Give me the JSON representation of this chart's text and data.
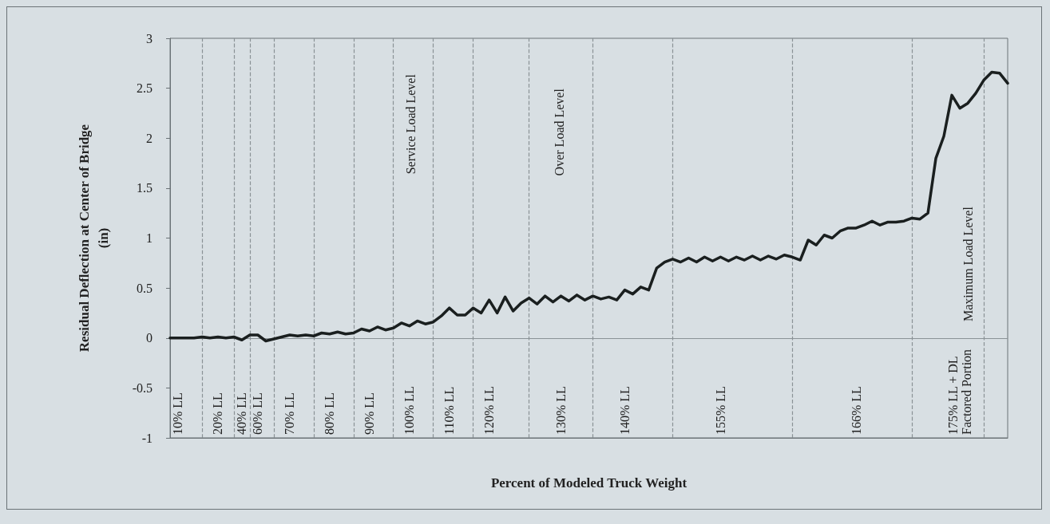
{
  "chart_data": {
    "type": "line",
    "xlabel": "Percent of Modeled Truck Weight",
    "ylabel": "Residual Deflection at Center of Bridge\n(in)",
    "categories": [
      null,
      "10% LL",
      null,
      null,
      null,
      null,
      "20% LL",
      null,
      null,
      "40% LL",
      null,
      "60% LL",
      null,
      null,
      null,
      "70% LL",
      null,
      null,
      null,
      null,
      "80% LL",
      null,
      null,
      null,
      null,
      "90% LL",
      null,
      null,
      null,
      null,
      "100% LL",
      null,
      null,
      null,
      null,
      "110% LL",
      null,
      null,
      null,
      null,
      "120% LL",
      null,
      null,
      null,
      null,
      null,
      null,
      null,
      null,
      "130% LL",
      null,
      null,
      null,
      null,
      null,
      null,
      null,
      "140% LL",
      null,
      null,
      null,
      null,
      null,
      null,
      null,
      null,
      null,
      null,
      null,
      "155% LL",
      null,
      null,
      null,
      null,
      null,
      null,
      null,
      null,
      null,
      null,
      null,
      null,
      null,
      null,
      null,
      null,
      "166% LL",
      null,
      null,
      null,
      null,
      null,
      null,
      null,
      null,
      null,
      null,
      null,
      null,
      "175% LL + DL\nFactored Portion",
      null,
      null,
      null,
      null,
      null,
      null
    ],
    "series": [
      {
        "color": "#1a1f1f",
        "values": [
          0.0,
          0.0,
          0.0,
          0.0,
          0.01,
          0.0,
          0.01,
          0.0,
          0.01,
          -0.02,
          0.03,
          0.03,
          -0.03,
          -0.01,
          0.01,
          0.03,
          0.02,
          0.03,
          0.02,
          0.05,
          0.04,
          0.06,
          0.04,
          0.05,
          0.09,
          0.07,
          0.11,
          0.08,
          0.1,
          0.15,
          0.12,
          0.17,
          0.14,
          0.16,
          0.22,
          0.3,
          0.23,
          0.23,
          0.3,
          0.25,
          0.38,
          0.25,
          0.41,
          0.27,
          0.35,
          0.4,
          0.34,
          0.42,
          0.36,
          0.42,
          0.37,
          0.43,
          0.38,
          0.42,
          0.39,
          0.41,
          0.38,
          0.48,
          0.44,
          0.51,
          0.48,
          0.7,
          0.76,
          0.79,
          0.76,
          0.8,
          0.76,
          0.81,
          0.77,
          0.81,
          0.77,
          0.81,
          0.78,
          0.82,
          0.78,
          0.82,
          0.79,
          0.83,
          0.81,
          0.78,
          0.98,
          0.93,
          1.03,
          1.0,
          1.07,
          1.1,
          1.1,
          1.13,
          1.17,
          1.13,
          1.16,
          1.16,
          1.17,
          1.2,
          1.19,
          1.25,
          1.8,
          2.02,
          2.43,
          2.3,
          2.35,
          2.45,
          2.58,
          2.66,
          2.65,
          2.55
        ]
      }
    ],
    "ylim": [
      -1,
      3
    ],
    "yticks": [
      -1,
      -0.5,
      0,
      0.5,
      1,
      1.5,
      2,
      2.5,
      3
    ],
    "marker": "none",
    "line_style": "solid",
    "ref_lines": [
      {
        "axis": "y",
        "value": 0,
        "color": "#8a9296",
        "line_style": "solid"
      }
    ],
    "annotations": [
      "Service Load Level",
      "Over Load Level",
      "Maximum Load Level"
    ]
  }
}
